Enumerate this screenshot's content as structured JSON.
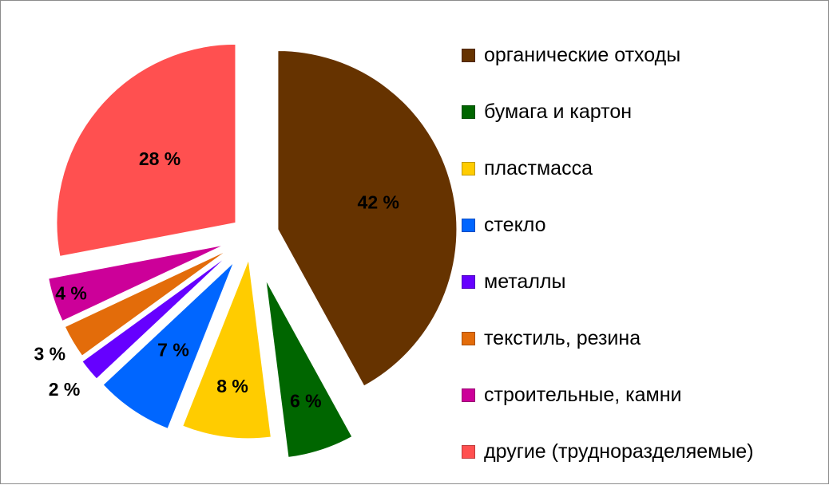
{
  "chart_data": {
    "type": "pie",
    "exploded": true,
    "legend_position": "right",
    "slices": [
      {
        "label": "органические  отходы",
        "value": 42,
        "display": "42 %",
        "color": "#663300"
      },
      {
        "label": "бумага и картон",
        "value": 6,
        "display": "6 %",
        "color": "#006600"
      },
      {
        "label": "пластмасса",
        "value": 8,
        "display": "8 %",
        "color": "#ffcc00"
      },
      {
        "label": "стекло",
        "value": 7,
        "display": "7 %",
        "color": "#0066ff"
      },
      {
        "label": "металлы",
        "value": 2,
        "display": "2 %",
        "color": "#6600ff"
      },
      {
        "label": "текстиль, резина",
        "value": 3,
        "display": "3 %",
        "color": "#e36c0a"
      },
      {
        "label": "строительные, камни",
        "value": 4,
        "display": "4 %",
        "color": "#cc0099"
      },
      {
        "label": "другие (трудноразделяемые)",
        "value": 28,
        "display": "28 %",
        "color": "#ff5050"
      }
    ]
  }
}
